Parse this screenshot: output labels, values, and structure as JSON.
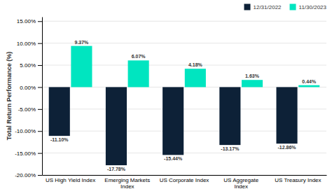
{
  "chart_data": {
    "type": "bar",
    "categories": [
      "US High Yield Index",
      "Emerging Markets\nIndex",
      "US Corporate Index",
      "US Aggregate\nIndex",
      "US Treasury Index"
    ],
    "series": [
      {
        "name": "12/31/2022",
        "color": "#0d2137",
        "values": [
          -11.1,
          -17.78,
          -15.44,
          -13.17,
          -12.86
        ],
        "value_labels": [
          "-11.10%",
          "-17.78%",
          "-15.44%",
          "-13.17%",
          "-12.86%"
        ]
      },
      {
        "name": "11/30/2023",
        "color": "#00e5c0",
        "values": [
          9.37,
          6.07,
          4.18,
          1.63,
          0.44
        ],
        "value_labels": [
          "9.37%",
          "6.07%",
          "4.18%",
          "1.63%",
          "0.44%"
        ]
      }
    ],
    "ylabel": "Total Return Performance (%)",
    "ylim": [
      -20.0,
      16.0
    ],
    "yticks": [
      {
        "value": -20.0,
        "label": "-20.00%"
      },
      {
        "value": -15.0,
        "label": "-15.00%"
      },
      {
        "value": -10.0,
        "label": "-10.00%"
      },
      {
        "value": -5.0,
        "label": "-5.00%"
      },
      {
        "value": 0.0,
        "label": "0.00%"
      },
      {
        "value": 5.0,
        "label": "5.00%"
      },
      {
        "value": 10.0,
        "label": "10.00%"
      },
      {
        "value": 15.0,
        "label": "15.00%"
      }
    ],
    "grid": true,
    "legend": "upper right",
    "data_labels": true
  }
}
